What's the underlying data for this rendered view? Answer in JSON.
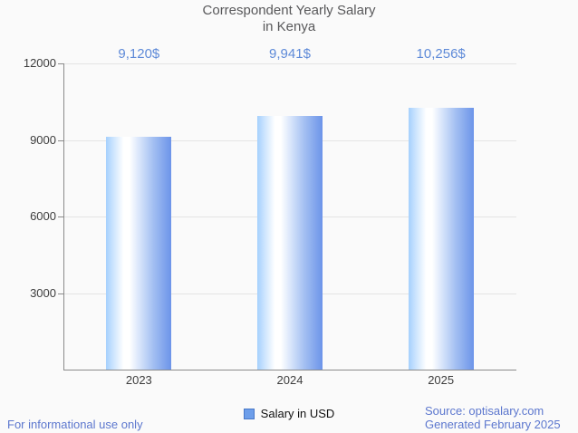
{
  "title": {
    "line1": "Correspondent Yearly Salary",
    "line2": "in Kenya"
  },
  "legend": {
    "label": "Salary in USD"
  },
  "footer": {
    "left": "For informational use only",
    "source": "Source: optisalary.com",
    "generated": "Generated February 2025"
  },
  "colors": {
    "accent_blue": "#5e8ad8",
    "footer_blue": "#5c77ce",
    "title_gray": "#58585a",
    "tick_text": "#3d3d3d",
    "grid": "#e4e4e4",
    "axis": "#8a8a8a",
    "bar_left": "#a5d0fd",
    "bar_mid": "#ffffff",
    "bar_right": "#6c94e9",
    "legend_fill": "#6d9eea",
    "legend_border": "#4878c8",
    "background": "#fafafa"
  },
  "chart_data": {
    "type": "bar",
    "title": "Correspondent Yearly Salary in Kenya",
    "categories": [
      "2023",
      "2024",
      "2025"
    ],
    "values": [
      9120,
      9941,
      10256
    ],
    "value_labels": [
      "9,120$",
      "9,941$",
      "10,256$"
    ],
    "series_name": "Salary in USD",
    "xlabel": "",
    "ylabel": "",
    "ylim": [
      0,
      12000
    ],
    "yticks": [
      3000,
      6000,
      9000,
      12000
    ],
    "grid": true,
    "legend_position": "bottom"
  }
}
